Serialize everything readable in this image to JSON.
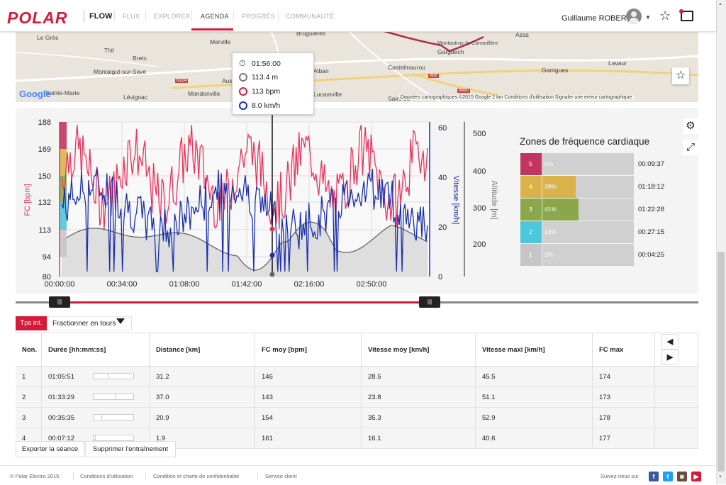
{
  "header": {
    "logo": "POLAR",
    "product": "FLOW",
    "nav": [
      "FLUX",
      "EXPLORER",
      "AGENDA",
      "PROGRÈS",
      "COMMUNAUTÉ"
    ],
    "active_nav": "AGENDA",
    "user_name": "Guillaume ROBERT",
    "icons": [
      "avatar",
      "chevron-down-icon",
      "star-icon",
      "message-icon"
    ]
  },
  "map": {
    "towns": [
      "Le Grès",
      "Thil",
      "Merville",
      "Bruguières",
      "Azas",
      "Montastruc-la-Conseillère",
      "Bretx",
      "Gargdech",
      "Montaigut-sur-Save",
      "Alban",
      "Castelmaurou",
      "Garrigues",
      "Lavaur",
      "Lévignac",
      "Mondonville",
      "Aus",
      "Lucamville",
      "Saint-Je",
      "Sainte-Marie"
    ],
    "roads": [
      "N224",
      "A68",
      "A680"
    ],
    "attribution": "Données cartographiques ©2015 Google   2 km   Conditions d'utilisation   Signaler une erreur cartographique",
    "google_label": "Google"
  },
  "tooltip": {
    "time": "01:56:00",
    "altitude": "113.4 m",
    "hr": "113 bpm",
    "speed": "8.0 km/h"
  },
  "chart_data": {
    "type": "line",
    "y_left_label": "FC [bpm]",
    "y_left_ticks": [
      "188",
      "169",
      "150",
      "132",
      "113",
      "94",
      "80"
    ],
    "y_right1_label": "Vitesse [km/h]",
    "y_right1_ticks": [
      "60",
      "40",
      "20",
      "0"
    ],
    "y_right2_label": "Altitude [m]",
    "y_right2_ticks": [
      "500",
      "400",
      "300",
      "200"
    ],
    "x_ticks": [
      "00:00:00",
      "00:34:00",
      "01:08:00",
      "01:42:00",
      "02:16:00",
      "02:50:00"
    ],
    "series": [
      {
        "name": "FC",
        "color": "#e8325a"
      },
      {
        "name": "Vitesse",
        "color": "#1a2fb0"
      },
      {
        "name": "Altitude",
        "color": "#666666"
      }
    ],
    "colors": {
      "hr": "#e8325a",
      "speed": "#1a2fb0",
      "altitude": "#666666",
      "cursor": "#111111"
    }
  },
  "zones": {
    "title": "Zones de fréquence cardiaque",
    "items": [
      {
        "num": "5",
        "pct": "5%",
        "frac": 0.05,
        "time": "00:09:37",
        "color": "#c0365f"
      },
      {
        "num": "4",
        "pct": "39%",
        "frac": 0.39,
        "time": "01:18:12",
        "color": "#d9b24a"
      },
      {
        "num": "3",
        "pct": "41%",
        "frac": 0.41,
        "time": "01:22:28",
        "color": "#8aa84b"
      },
      {
        "num": "2",
        "pct": "13%",
        "frac": 0.13,
        "time": "00:27:15",
        "color": "#4cc7dc"
      },
      {
        "num": "1",
        "pct": "2%",
        "frac": 0.02,
        "time": "00:04:25",
        "color": "#c6c6c6"
      }
    ],
    "icons": [
      "settings-icon",
      "expand-icon"
    ]
  },
  "tabs": {
    "active": "Tps int.",
    "dropdown": "Fractionner en tours"
  },
  "table": {
    "headers": [
      "Non.",
      "Durée [hh:mm:ss]",
      "Distance [km]",
      "FC moy [bpm]",
      "Vitesse moy [km/h]",
      "Vitesse maxi [km/h]",
      "FC max"
    ],
    "rows": [
      {
        "num": "1",
        "dur": "01:05:51",
        "frac": 0.38,
        "dist": "31.2",
        "hr": "146",
        "vmoy": "28.5",
        "vmax": "45.5",
        "hrmax": "174"
      },
      {
        "num": "2",
        "dur": "01:33:29",
        "frac": 0.54,
        "dist": "37.0",
        "hr": "143",
        "vmoy": "23.8",
        "vmax": "51.1",
        "hrmax": "173"
      },
      {
        "num": "3",
        "dur": "00:35:35",
        "frac": 0.2,
        "dist": "20.9",
        "hr": "154",
        "vmoy": "35.3",
        "vmax": "52.9",
        "hrmax": "178"
      },
      {
        "num": "4",
        "dur": "00:07:12",
        "frac": 0.04,
        "dist": "1.9",
        "hr": "161",
        "vmoy": "16.1",
        "vmax": "40.6",
        "hrmax": "177"
      }
    ]
  },
  "actions": {
    "export": "Exporter la séance",
    "delete": "Supprimer l'entraînement"
  },
  "footer": {
    "copyright": "© Polar Electro 2015",
    "links": [
      "Conditions d'utilisation",
      "Condition et charte de confidentialité",
      "Service client"
    ],
    "follow": "Suivez-nous sur",
    "social": [
      "facebook-icon",
      "twitter-icon",
      "instagram-icon",
      "youtube-icon"
    ]
  }
}
